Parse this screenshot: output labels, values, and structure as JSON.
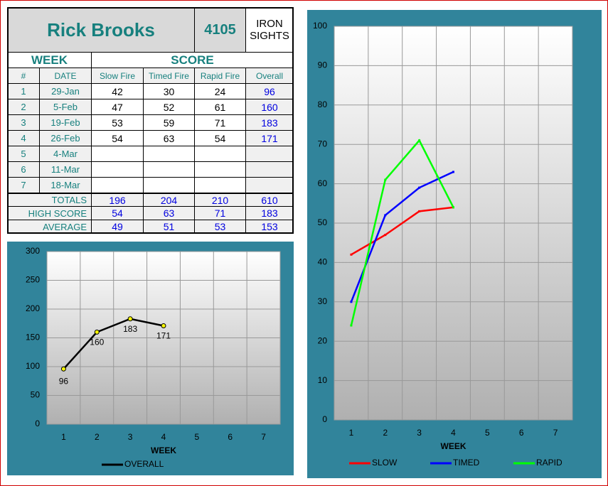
{
  "header": {
    "name": "Rick Brooks",
    "number": "4105",
    "category": "IRON SIGHTS"
  },
  "table": {
    "group_headers": [
      "WEEK",
      "SCORE"
    ],
    "columns": [
      "#",
      "DATE",
      "Slow Fire",
      "Timed Fire",
      "Rapid Fire",
      "Overall"
    ],
    "rows": [
      [
        1,
        "29-Jan",
        42,
        30,
        24,
        96
      ],
      [
        2,
        "5-Feb",
        47,
        52,
        61,
        160
      ],
      [
        3,
        "19-Feb",
        53,
        59,
        71,
        183
      ],
      [
        4,
        "26-Feb",
        54,
        63,
        54,
        171
      ],
      [
        5,
        "4-Mar",
        null,
        null,
        null,
        null
      ],
      [
        6,
        "11-Mar",
        null,
        null,
        null,
        null
      ],
      [
        7,
        "18-Mar",
        null,
        null,
        null,
        null
      ]
    ],
    "summary": [
      [
        "TOTALS",
        196,
        204,
        210,
        610
      ],
      [
        "HIGH SCORE",
        54,
        63,
        71,
        183
      ],
      [
        "AVERAGE",
        49,
        51,
        53,
        153
      ]
    ]
  },
  "chart_data": [
    {
      "type": "line",
      "x_label": "WEEK",
      "categories": [
        1,
        2,
        3,
        4,
        5,
        6,
        7
      ],
      "series": [
        {
          "name": "OVERALL",
          "color": "#000000",
          "values": [
            96,
            160,
            183,
            171,
            null,
            null,
            null
          ]
        }
      ],
      "ylim": [
        0,
        300
      ],
      "yticks": [
        0,
        50,
        100,
        150,
        200,
        250,
        300
      ],
      "grid": true,
      "data_labels": true
    },
    {
      "type": "line",
      "x_label": "WEEK",
      "categories": [
        1,
        2,
        3,
        4,
        5,
        6,
        7
      ],
      "series": [
        {
          "name": "SLOW",
          "color": "#ff0000",
          "values": [
            42,
            47,
            53,
            54,
            null,
            null,
            null
          ]
        },
        {
          "name": "TIMED",
          "color": "#0000ff",
          "values": [
            30,
            52,
            59,
            63,
            null,
            null,
            null
          ]
        },
        {
          "name": "RAPID",
          "color": "#00ff00",
          "values": [
            24,
            61,
            71,
            54,
            null,
            null,
            null
          ]
        }
      ],
      "ylim": [
        0,
        100
      ],
      "yticks": [
        0,
        10,
        20,
        30,
        40,
        50,
        60,
        70,
        80,
        90,
        100
      ],
      "grid": true,
      "data_labels": false
    }
  ]
}
